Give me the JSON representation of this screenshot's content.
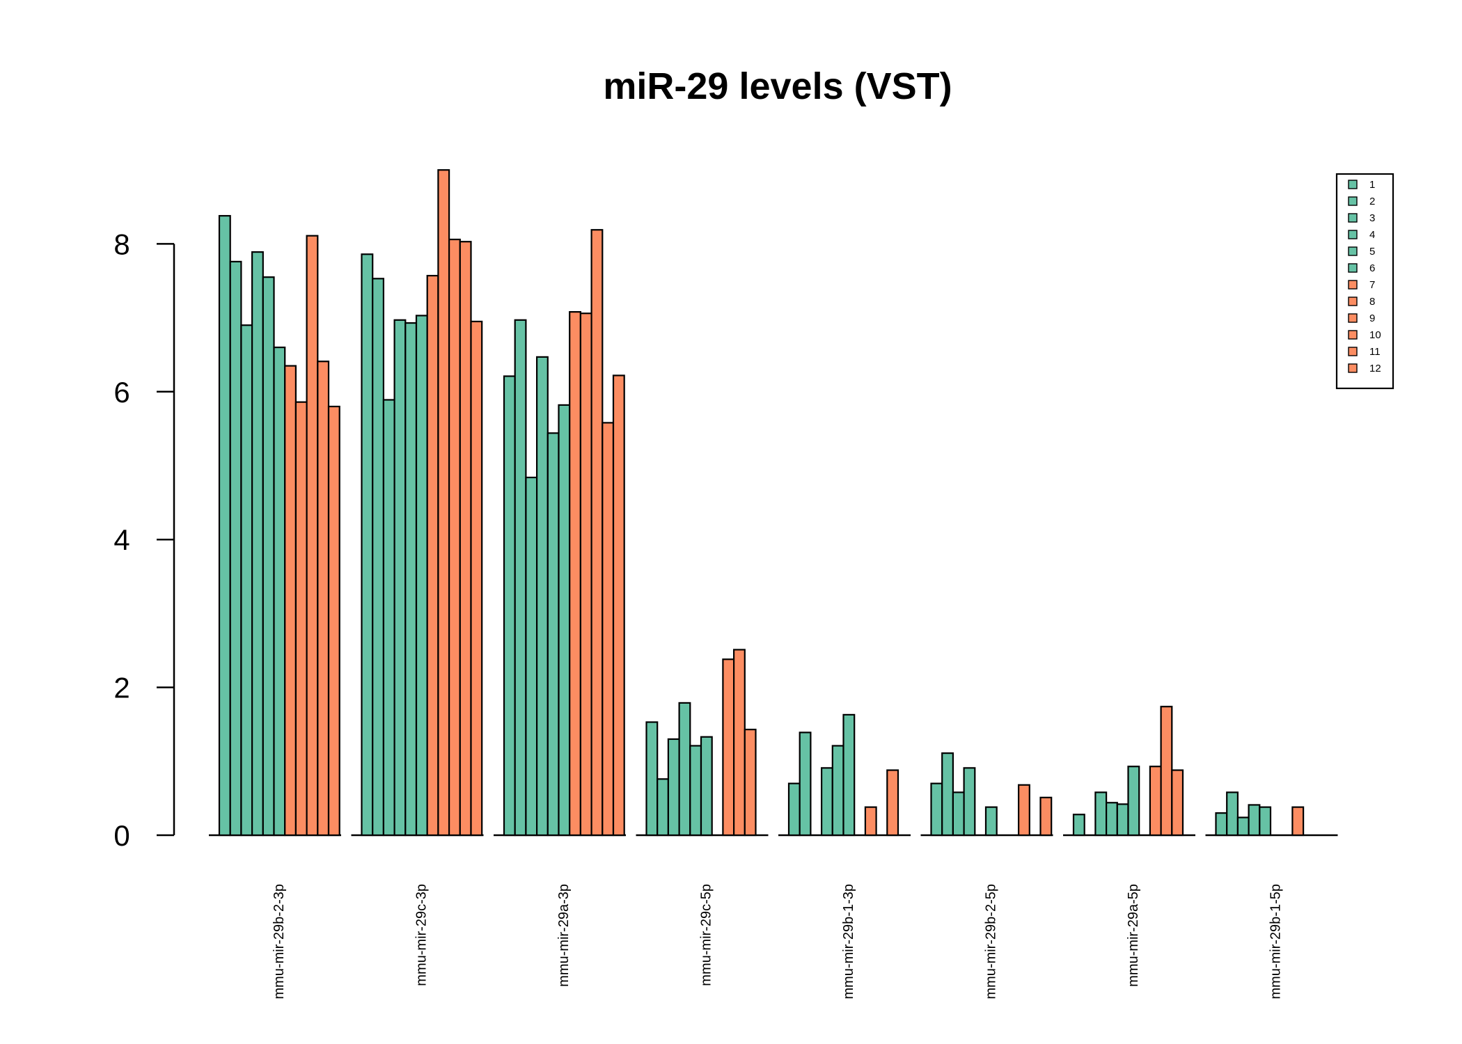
{
  "chart_data": {
    "type": "bar",
    "title": "miR-29 levels (VST)",
    "xlabel": "",
    "ylabel": "",
    "ylim": [
      0,
      9
    ],
    "yticks": [
      0,
      2,
      4,
      6,
      8
    ],
    "grid": false,
    "legend_position": "top-right",
    "colors": {
      "green": "#66c2a5",
      "orange": "#fc8d62",
      "outline": "#000000"
    },
    "categories": [
      "mmu-mir-29b-2-3p",
      "mmu-mir-29c-3p",
      "mmu-mir-29a-3p",
      "mmu-mir-29c-5p",
      "mmu-mir-29b-1-3p",
      "mmu-mir-29b-2-5p",
      "mmu-mir-29a-5p",
      "mmu-mir-29b-1-5p"
    ],
    "series": [
      {
        "name": "1",
        "color": "#66c2a5",
        "values": [
          8.38,
          7.86,
          6.21,
          1.53,
          0.7,
          0.7,
          0.28,
          0.3
        ]
      },
      {
        "name": "2",
        "color": "#66c2a5",
        "values": [
          7.76,
          7.53,
          6.97,
          0.76,
          1.39,
          1.11,
          0.0,
          0.58
        ]
      },
      {
        "name": "3",
        "color": "#66c2a5",
        "values": [
          6.9,
          5.89,
          4.84,
          1.3,
          0.0,
          0.58,
          0.58,
          0.24
        ]
      },
      {
        "name": "4",
        "color": "#66c2a5",
        "values": [
          7.89,
          6.97,
          6.47,
          1.79,
          0.91,
          0.91,
          0.44,
          0.41
        ]
      },
      {
        "name": "5",
        "color": "#66c2a5",
        "values": [
          7.55,
          6.93,
          5.44,
          1.21,
          1.21,
          0.0,
          0.42,
          0.38
        ]
      },
      {
        "name": "6",
        "color": "#66c2a5",
        "values": [
          6.6,
          7.03,
          5.82,
          1.33,
          1.63,
          0.38,
          0.93,
          0.0
        ]
      },
      {
        "name": "7",
        "color": "#fc8d62",
        "values": [
          6.35,
          7.57,
          7.08,
          0.0,
          0.0,
          0.0,
          0.0,
          0.0
        ]
      },
      {
        "name": "8",
        "color": "#fc8d62",
        "values": [
          5.86,
          9.0,
          7.06,
          2.38,
          0.38,
          0.0,
          0.93,
          0.38
        ]
      },
      {
        "name": "9",
        "color": "#fc8d62",
        "values": [
          8.11,
          8.06,
          8.19,
          2.51,
          0.0,
          0.68,
          1.74,
          0.0
        ]
      },
      {
        "name": "10",
        "color": "#fc8d62",
        "values": [
          6.41,
          8.03,
          5.58,
          1.43,
          0.88,
          0.0,
          0.88,
          0.0
        ]
      },
      {
        "name": "11",
        "color": "#fc8d62",
        "values": [
          5.8,
          6.95,
          6.22,
          0.0,
          0.0,
          0.51,
          0.0,
          0.0
        ]
      },
      {
        "name": "12",
        "color": "#fc8d62",
        "values": [
          0.0,
          0.0,
          0.0,
          0.0,
          0.0,
          0.0,
          0.0,
          0.0
        ]
      }
    ]
  }
}
